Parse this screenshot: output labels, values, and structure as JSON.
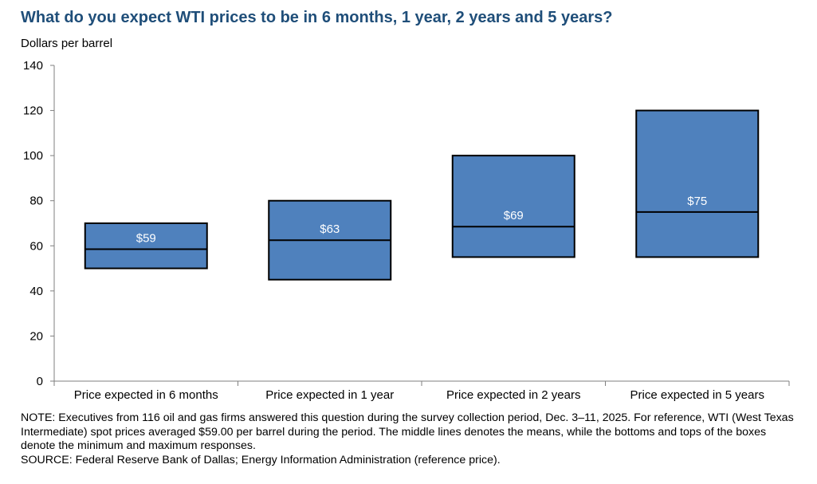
{
  "chart_data": {
    "type": "box",
    "title": "What do you expect WTI prices to be in 6 months, 1 year, 2 years and 5 years?",
    "ylabel": "Dollars  per barrel",
    "xlabel": "",
    "ylim": [
      0,
      140
    ],
    "yticks": [
      "0",
      "20",
      "40",
      "60",
      "80",
      "100",
      "120",
      "140"
    ],
    "categories": [
      "Price expected in 6 months",
      "Price expected in 1 year",
      "Price expected in 2 years",
      "Price expected in 5 years"
    ],
    "min": [
      50,
      45,
      55,
      55
    ],
    "max": [
      70,
      80,
      100,
      120
    ],
    "mean": [
      58.5,
      62.5,
      68.5,
      75
    ],
    "mean_labels": [
      "$59",
      "$63",
      "$69",
      "$75"
    ],
    "colors": {
      "box_fill": "#4f81bd",
      "box_stroke": "#000000",
      "label_text": "#ffffff",
      "title": "#1f4e79",
      "axis": "#7f7f7f"
    }
  },
  "notes": {
    "note": "NOTE:  Executives from 116 oil and gas firms answered this question during the survey collection period, Dec. 3–11, 2025. For reference, WTI (West Texas Intermediate) spot prices averaged $59.00 per barrel during the period. The middle lines denotes the means, while the bottoms and tops of the boxes denote the minimum and maximum responses.",
    "source": "SOURCE:  Federal Reserve Bank of Dallas; Energy Information Administration (reference price)."
  }
}
